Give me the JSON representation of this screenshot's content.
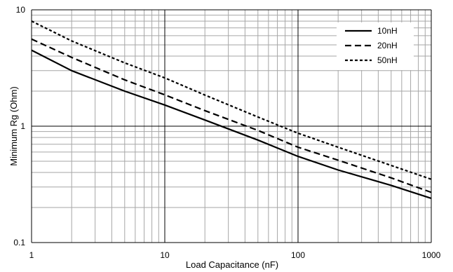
{
  "chart_data": {
    "type": "line",
    "title": "",
    "xlabel": "Load Capacitance (nF)",
    "ylabel": "Minimum Rg (Ohm)",
    "xscale": "log",
    "yscale": "log",
    "xlim": [
      1,
      1000
    ],
    "ylim": [
      0.1,
      10
    ],
    "x_ticks": [
      "1",
      "10",
      "100",
      "1000"
    ],
    "y_ticks": [
      "0.1",
      "1",
      "10"
    ],
    "grid": true,
    "legend_position": "top-right",
    "x": [
      1,
      2,
      5,
      10,
      20,
      50,
      100,
      200,
      500,
      1000
    ],
    "series": [
      {
        "name": "10nH",
        "style": "solid",
        "values": [
          4.5,
          3.0,
          2.0,
          1.52,
          1.13,
          0.76,
          0.55,
          0.42,
          0.31,
          0.24
        ]
      },
      {
        "name": "20nH",
        "style": "dashed",
        "values": [
          5.6,
          3.9,
          2.5,
          1.86,
          1.36,
          0.92,
          0.66,
          0.51,
          0.36,
          0.27
        ]
      },
      {
        "name": "50nH",
        "style": "dotted",
        "values": [
          8.0,
          5.4,
          3.5,
          2.6,
          1.85,
          1.2,
          0.87,
          0.66,
          0.46,
          0.35
        ]
      }
    ]
  }
}
